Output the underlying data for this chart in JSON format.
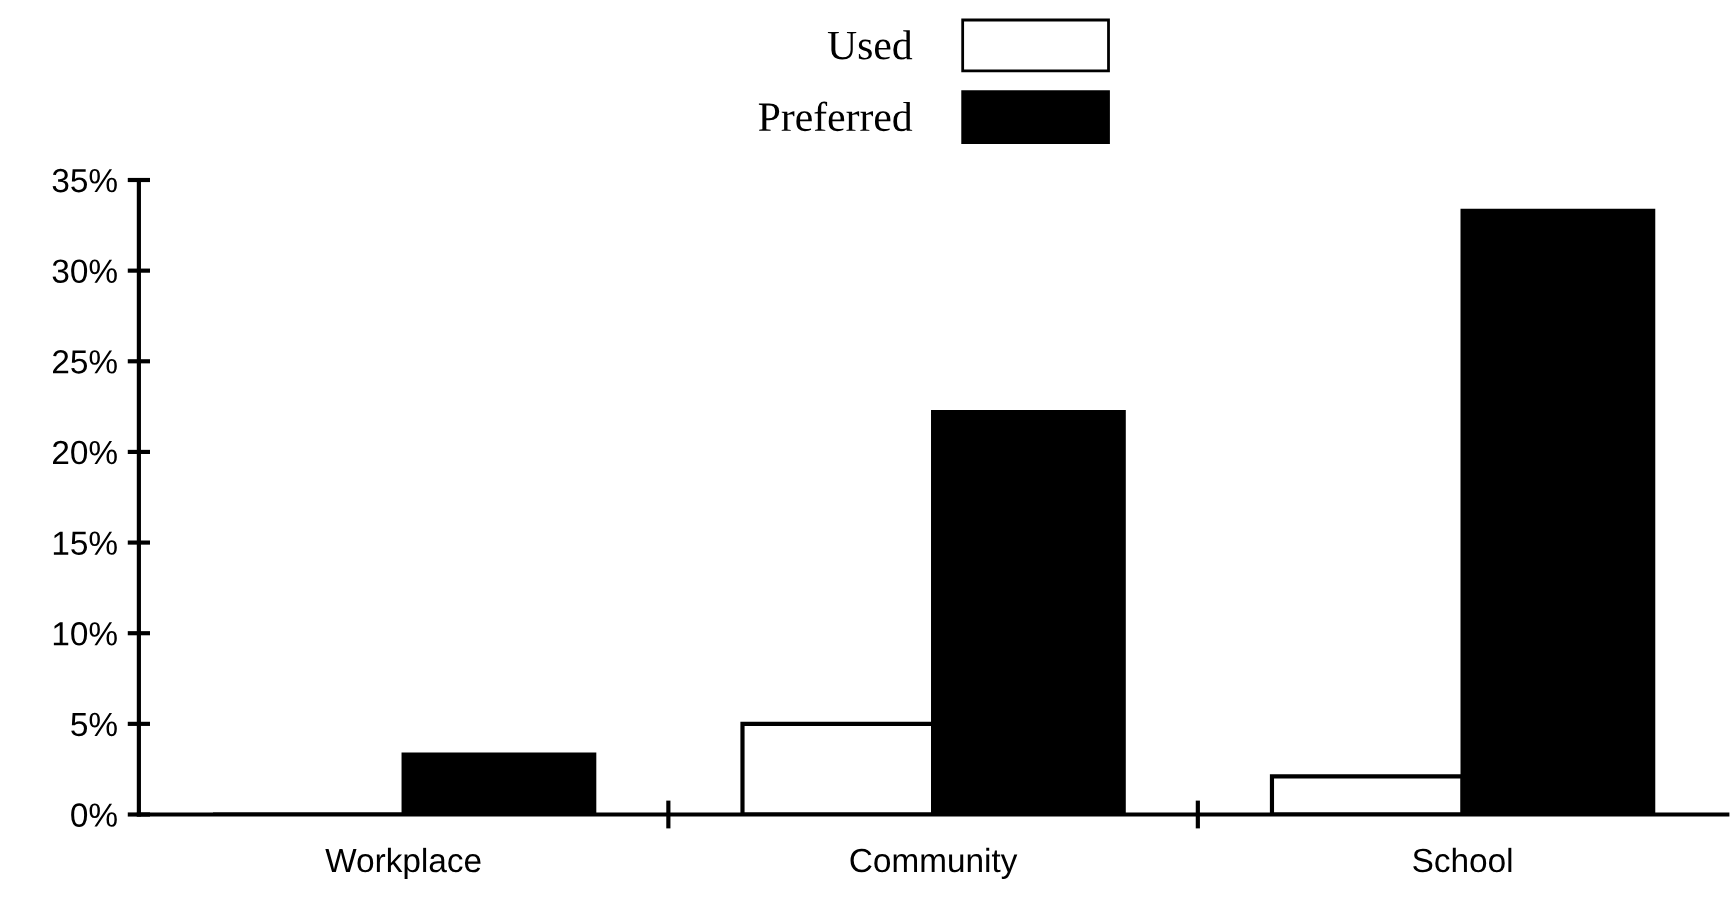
{
  "chart_data": {
    "type": "bar",
    "categories": [
      "Workplace",
      "Community",
      "School"
    ],
    "series": [
      {
        "name": "Used",
        "color": "#ffffff",
        "values": [
          0,
          5.0,
          2.1
        ]
      },
      {
        "name": "Preferred",
        "color": "#000000",
        "values": [
          3.3,
          22.2,
          33.3
        ]
      }
    ],
    "ylim": [
      0,
      35
    ],
    "yticks": [
      {
        "value": 0,
        "label": "0%"
      },
      {
        "value": 5,
        "label": "5%"
      },
      {
        "value": 10,
        "label": "10%"
      },
      {
        "value": 15,
        "label": "15%"
      },
      {
        "value": 20,
        "label": "20%"
      },
      {
        "value": 25,
        "label": "25%"
      },
      {
        "value": 30,
        "label": "30%"
      },
      {
        "value": 35,
        "label": "35%"
      }
    ],
    "grid": false,
    "legend": "top"
  }
}
